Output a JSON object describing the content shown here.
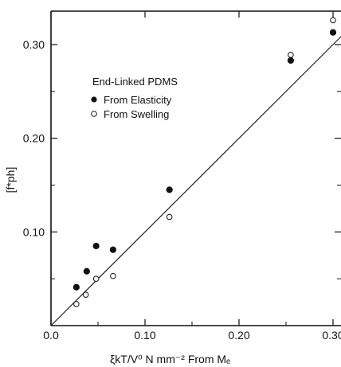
{
  "chart_data": {
    "type": "scatter",
    "xlabel": "ξkT/V⁰  N mm⁻² From Mₑ",
    "ylabel": "[f*ph]",
    "xlim": [
      0.0,
      0.31
    ],
    "ylim": [
      0.0,
      0.335
    ],
    "x_ticks": [
      0.0,
      0.1,
      0.2,
      0.3
    ],
    "x_tick_labels": [
      "0.0",
      "0.10",
      "0.20",
      "0.30"
    ],
    "y_ticks": [
      0.1,
      0.2,
      0.3
    ],
    "y_tick_labels": [
      "0.10",
      "0.20",
      "0.30"
    ],
    "grid": false,
    "legend": {
      "title": "End-Linked PDMS",
      "placement": "top-left",
      "entries": [
        "From Elasticity",
        "From Swelling"
      ]
    },
    "series": [
      {
        "name": "From Elasticity",
        "marker": "filled-circle",
        "points": [
          {
            "x": 0.027,
            "y": 0.041
          },
          {
            "x": 0.038,
            "y": 0.058
          },
          {
            "x": 0.048,
            "y": 0.085
          },
          {
            "x": 0.066,
            "y": 0.081
          },
          {
            "x": 0.126,
            "y": 0.145
          },
          {
            "x": 0.255,
            "y": 0.283
          },
          {
            "x": 0.3,
            "y": 0.313
          }
        ]
      },
      {
        "name": "From Swelling",
        "marker": "open-circle",
        "points": [
          {
            "x": 0.027,
            "y": 0.023
          },
          {
            "x": 0.037,
            "y": 0.033
          },
          {
            "x": 0.048,
            "y": 0.05
          },
          {
            "x": 0.066,
            "y": 0.053
          },
          {
            "x": 0.126,
            "y": 0.116
          },
          {
            "x": 0.255,
            "y": 0.289
          },
          {
            "x": 0.3,
            "y": 0.326
          }
        ]
      }
    ],
    "fit_line": {
      "x": [
        0.0,
        0.31
      ],
      "y": [
        0.0,
        0.31
      ]
    }
  }
}
